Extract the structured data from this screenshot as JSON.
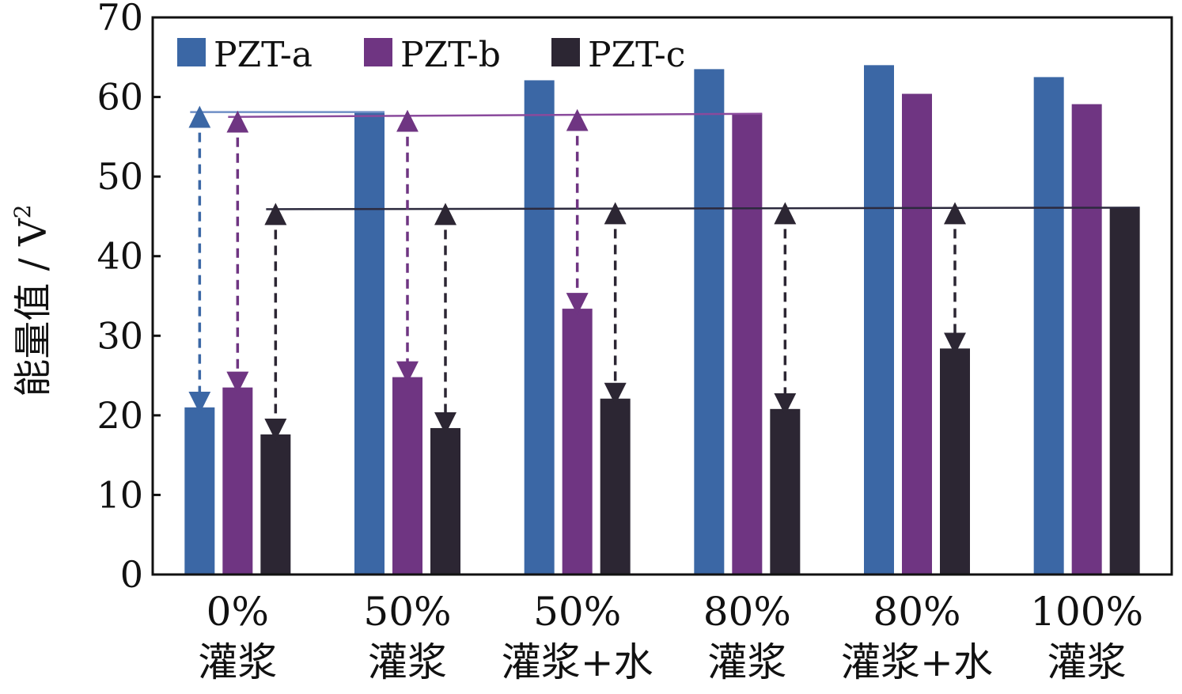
{
  "chart_data": {
    "type": "bar",
    "ylabel": "能量值 / V²",
    "ylabel_parts": {
      "main": "能量值 / V",
      "sup": "2"
    },
    "xlabel": "",
    "ylim": [
      0,
      70
    ],
    "yticks": [
      0,
      10,
      20,
      30,
      40,
      50,
      60,
      70
    ],
    "categories": [
      [
        "0%",
        "灌浆"
      ],
      [
        "50%",
        "灌浆"
      ],
      [
        "50%",
        "灌浆+水"
      ],
      [
        "80%",
        "灌浆"
      ],
      [
        "80%",
        "灌浆+水"
      ],
      [
        "100%",
        "灌浆"
      ]
    ],
    "series": [
      {
        "name": "PZT-a",
        "color": "#3b67a5",
        "values": [
          21,
          58.2,
          62.1,
          63.5,
          64.0,
          62.5
        ]
      },
      {
        "name": "PZT-b",
        "color": "#6f3582",
        "values": [
          23.5,
          24.8,
          33.4,
          57.9,
          60.4,
          59.1
        ]
      },
      {
        "name": "PZT-c",
        "color": "#2c2633",
        "values": [
          17.6,
          18.4,
          22.1,
          20.8,
          28.4,
          46.0
        ]
      }
    ],
    "legend": "top-left",
    "grid": false,
    "reference_lines": [
      {
        "series": "PZT-a",
        "color": "#6f8fc6",
        "from_category": 0,
        "to_category": 1,
        "value": 58.1
      },
      {
        "series": "PZT-b",
        "color": "#8a4a9c",
        "from_category": 0,
        "to_category": 3,
        "value": 57.5,
        "value_end": 57.9
      },
      {
        "series": "PZT-c",
        "color": "#2c2a3e",
        "from_category": 0,
        "to_category": 5,
        "value": 45.9,
        "value_end": 46.1
      }
    ],
    "arrows": [
      {
        "category": 0,
        "series": "PZT-a",
        "color": "#3b67a5",
        "top": 58.1,
        "bottom": 21
      },
      {
        "category": 0,
        "series": "PZT-b",
        "color": "#6f3582",
        "top": 57.5,
        "bottom": 23.5
      },
      {
        "category": 0,
        "series": "PZT-c",
        "color": "#2c2633",
        "top": 45.9,
        "bottom": 17.6
      },
      {
        "category": 1,
        "series": "PZT-b",
        "color": "#6f3582",
        "top": 57.6,
        "bottom": 24.8
      },
      {
        "category": 1,
        "series": "PZT-c",
        "color": "#2c2633",
        "top": 45.9,
        "bottom": 18.4
      },
      {
        "category": 2,
        "series": "PZT-b",
        "color": "#6f3582",
        "top": 57.7,
        "bottom": 33.4
      },
      {
        "category": 2,
        "series": "PZT-c",
        "color": "#2c2633",
        "top": 46.0,
        "bottom": 22.1
      },
      {
        "category": 3,
        "series": "PZT-c",
        "color": "#2c2633",
        "top": 46.0,
        "bottom": 20.8
      },
      {
        "category": 4,
        "series": "PZT-c",
        "color": "#2c2633",
        "top": 46.0,
        "bottom": 28.4
      }
    ]
  }
}
